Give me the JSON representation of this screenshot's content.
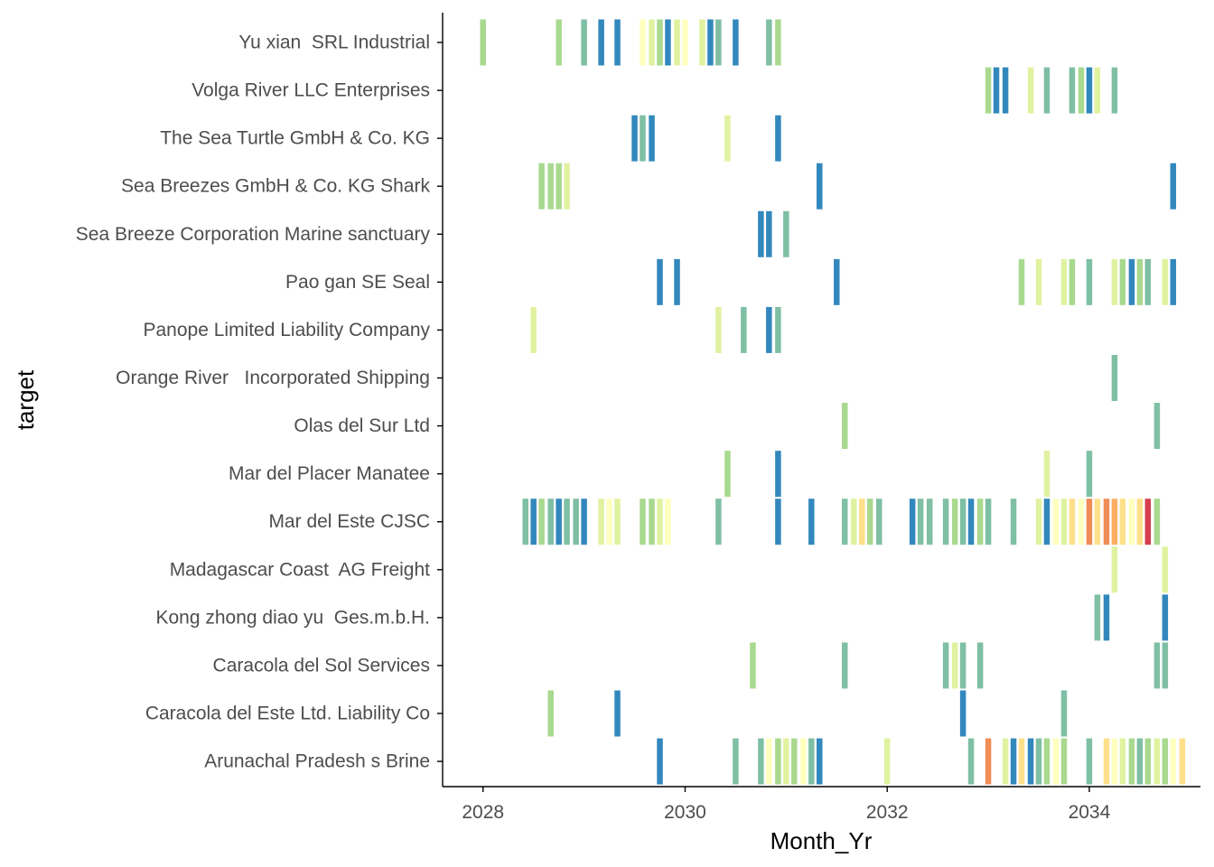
{
  "chart_data": {
    "type": "heatmap",
    "xlabel": "Month_Yr",
    "ylabel": "target",
    "xlim": [
      2027.6,
      2035.1
    ],
    "x_ticks": [
      2028,
      2030,
      2032,
      2034
    ],
    "categories": [
      "Yu xian  SRL Industrial",
      "Volga River LLC Enterprises",
      "The Sea Turtle GmbH & Co. KG",
      "Sea Breezes GmbH & Co. KG Shark",
      "Sea Breeze Corporation Marine sanctuary",
      "Pao gan SE Seal",
      "Panope Limited Liability Company",
      "Orange River   Incorporated Shipping",
      "Olas del Sur Ltd",
      "Mar del Placer Manatee",
      "Mar del Este CJSC",
      "Madagascar Coast  AG Freight",
      "Kong zhong diao yu  Ges.m.b.H.",
      "Caracola del Sol Services",
      "Caracola del Este Ltd. Liability Co",
      "Arunachal Pradesh s Brine"
    ],
    "palette": {
      "A": "#3288bd",
      "B": "#7fbfa4",
      "C": "#a8d98f",
      "D": "#e0f2a0",
      "E": "#ffffbf",
      "F": "#fee08b",
      "G": "#fdae61",
      "H": "#f08c55",
      "I": "#d53e4f"
    },
    "series": [
      {
        "category": "Yu xian  SRL Industrial",
        "cells": [
          [
            2028.0,
            "C"
          ],
          [
            2028.75,
            "C"
          ],
          [
            2029.0,
            "B"
          ],
          [
            2029.17,
            "A"
          ],
          [
            2029.33,
            "A"
          ],
          [
            2029.58,
            "E"
          ],
          [
            2029.67,
            "D"
          ],
          [
            2029.75,
            "C"
          ],
          [
            2029.83,
            "A"
          ],
          [
            2029.92,
            "D"
          ],
          [
            2030.0,
            "E"
          ],
          [
            2030.17,
            "D"
          ],
          [
            2030.25,
            "A"
          ],
          [
            2030.33,
            "B"
          ],
          [
            2030.5,
            "A"
          ],
          [
            2030.83,
            "B"
          ],
          [
            2030.92,
            "C"
          ]
        ]
      },
      {
        "category": "Volga River LLC Enterprises",
        "cells": [
          [
            2033.0,
            "C"
          ],
          [
            2033.08,
            "A"
          ],
          [
            2033.17,
            "A"
          ],
          [
            2033.42,
            "D"
          ],
          [
            2033.58,
            "B"
          ],
          [
            2033.83,
            "B"
          ],
          [
            2033.92,
            "C"
          ],
          [
            2034.0,
            "A"
          ],
          [
            2034.08,
            "D"
          ],
          [
            2034.25,
            "B"
          ]
        ]
      },
      {
        "category": "The Sea Turtle GmbH & Co. KG",
        "cells": [
          [
            2029.5,
            "A"
          ],
          [
            2029.58,
            "B"
          ],
          [
            2029.67,
            "A"
          ],
          [
            2030.42,
            "D"
          ],
          [
            2030.92,
            "A"
          ]
        ]
      },
      {
        "category": "Sea Breezes GmbH & Co. KG Shark",
        "cells": [
          [
            2028.58,
            "C"
          ],
          [
            2028.67,
            "C"
          ],
          [
            2028.75,
            "C"
          ],
          [
            2028.83,
            "D"
          ],
          [
            2031.33,
            "A"
          ],
          [
            2034.83,
            "A"
          ]
        ]
      },
      {
        "category": "Sea Breeze Corporation Marine sanctuary",
        "cells": [
          [
            2030.75,
            "A"
          ],
          [
            2030.83,
            "A"
          ],
          [
            2031.0,
            "B"
          ]
        ]
      },
      {
        "category": "Pao gan SE Seal",
        "cells": [
          [
            2029.75,
            "A"
          ],
          [
            2029.92,
            "A"
          ],
          [
            2031.5,
            "A"
          ],
          [
            2033.33,
            "C"
          ],
          [
            2033.5,
            "D"
          ],
          [
            2033.75,
            "D"
          ],
          [
            2033.83,
            "C"
          ],
          [
            2034.0,
            "B"
          ],
          [
            2034.25,
            "D"
          ],
          [
            2034.33,
            "C"
          ],
          [
            2034.42,
            "A"
          ],
          [
            2034.5,
            "C"
          ],
          [
            2034.58,
            "B"
          ],
          [
            2034.75,
            "D"
          ],
          [
            2034.83,
            "A"
          ]
        ]
      },
      {
        "category": "Panope Limited Liability Company",
        "cells": [
          [
            2028.5,
            "D"
          ],
          [
            2030.33,
            "D"
          ],
          [
            2030.58,
            "B"
          ],
          [
            2030.83,
            "A"
          ],
          [
            2030.92,
            "B"
          ]
        ]
      },
      {
        "category": "Orange River   Incorporated Shipping",
        "cells": [
          [
            2034.25,
            "B"
          ]
        ]
      },
      {
        "category": "Olas del Sur Ltd",
        "cells": [
          [
            2031.58,
            "C"
          ],
          [
            2034.67,
            "B"
          ]
        ]
      },
      {
        "category": "Mar del Placer Manatee",
        "cells": [
          [
            2030.42,
            "C"
          ],
          [
            2030.92,
            "A"
          ],
          [
            2033.58,
            "D"
          ],
          [
            2034.0,
            "B"
          ]
        ]
      },
      {
        "category": "Mar del Este CJSC",
        "cells": [
          [
            2028.42,
            "B"
          ],
          [
            2028.5,
            "A"
          ],
          [
            2028.58,
            "C"
          ],
          [
            2028.67,
            "B"
          ],
          [
            2028.75,
            "A"
          ],
          [
            2028.83,
            "B"
          ],
          [
            2028.92,
            "B"
          ],
          [
            2029.0,
            "A"
          ],
          [
            2029.17,
            "D"
          ],
          [
            2029.25,
            "E"
          ],
          [
            2029.33,
            "D"
          ],
          [
            2029.58,
            "C"
          ],
          [
            2029.67,
            "C"
          ],
          [
            2029.75,
            "D"
          ],
          [
            2029.83,
            "E"
          ],
          [
            2030.33,
            "B"
          ],
          [
            2030.92,
            "A"
          ],
          [
            2031.25,
            "A"
          ],
          [
            2031.58,
            "B"
          ],
          [
            2031.67,
            "D"
          ],
          [
            2031.75,
            "F"
          ],
          [
            2031.83,
            "C"
          ],
          [
            2031.92,
            "B"
          ],
          [
            2032.25,
            "A"
          ],
          [
            2032.33,
            "B"
          ],
          [
            2032.42,
            "B"
          ],
          [
            2032.58,
            "B"
          ],
          [
            2032.67,
            "C"
          ],
          [
            2032.75,
            "B"
          ],
          [
            2032.83,
            "A"
          ],
          [
            2032.92,
            "C"
          ],
          [
            2033.0,
            "B"
          ],
          [
            2033.25,
            "B"
          ],
          [
            2033.5,
            "D"
          ],
          [
            2033.58,
            "A"
          ],
          [
            2033.67,
            "E"
          ],
          [
            2033.75,
            "D"
          ],
          [
            2033.83,
            "F"
          ],
          [
            2033.92,
            "E"
          ],
          [
            2034.0,
            "H"
          ],
          [
            2034.08,
            "F"
          ],
          [
            2034.17,
            "H"
          ],
          [
            2034.25,
            "G"
          ],
          [
            2034.33,
            "F"
          ],
          [
            2034.42,
            "E"
          ],
          [
            2034.5,
            "F"
          ],
          [
            2034.58,
            "I"
          ],
          [
            2034.67,
            "C"
          ]
        ]
      },
      {
        "category": "Madagascar Coast  AG Freight",
        "cells": [
          [
            2034.25,
            "D"
          ],
          [
            2034.75,
            "D"
          ]
        ]
      },
      {
        "category": "Kong zhong diao yu  Ges.m.b.H.",
        "cells": [
          [
            2034.08,
            "B"
          ],
          [
            2034.17,
            "A"
          ],
          [
            2034.75,
            "A"
          ]
        ]
      },
      {
        "category": "Caracola del Sol Services",
        "cells": [
          [
            2030.67,
            "C"
          ],
          [
            2031.58,
            "B"
          ],
          [
            2032.58,
            "B"
          ],
          [
            2032.67,
            "D"
          ],
          [
            2032.75,
            "B"
          ],
          [
            2032.92,
            "B"
          ],
          [
            2034.67,
            "B"
          ],
          [
            2034.75,
            "B"
          ]
        ]
      },
      {
        "category": "Caracola del Este Ltd. Liability Co",
        "cells": [
          [
            2028.67,
            "C"
          ],
          [
            2029.33,
            "A"
          ],
          [
            2032.75,
            "A"
          ],
          [
            2033.75,
            "B"
          ]
        ]
      },
      {
        "category": "Arunachal Pradesh s Brine",
        "cells": [
          [
            2029.75,
            "A"
          ],
          [
            2030.5,
            "B"
          ],
          [
            2030.75,
            "B"
          ],
          [
            2030.83,
            "E"
          ],
          [
            2030.92,
            "C"
          ],
          [
            2031.0,
            "D"
          ],
          [
            2031.08,
            "C"
          ],
          [
            2031.17,
            "E"
          ],
          [
            2031.25,
            "B"
          ],
          [
            2031.33,
            "A"
          ],
          [
            2032.0,
            "D"
          ],
          [
            2032.83,
            "B"
          ],
          [
            2033.0,
            "H"
          ],
          [
            2033.17,
            "D"
          ],
          [
            2033.25,
            "A"
          ],
          [
            2033.33,
            "F"
          ],
          [
            2033.42,
            "A"
          ],
          [
            2033.5,
            "B"
          ],
          [
            2033.58,
            "C"
          ],
          [
            2033.67,
            "E"
          ],
          [
            2033.75,
            "C"
          ],
          [
            2034.0,
            "B"
          ],
          [
            2034.17,
            "F"
          ],
          [
            2034.25,
            "E"
          ],
          [
            2034.33,
            "D"
          ],
          [
            2034.42,
            "C"
          ],
          [
            2034.5,
            "B"
          ],
          [
            2034.58,
            "C"
          ],
          [
            2034.67,
            "D"
          ],
          [
            2034.75,
            "C"
          ],
          [
            2034.83,
            "E"
          ],
          [
            2034.92,
            "F"
          ]
        ]
      }
    ]
  }
}
